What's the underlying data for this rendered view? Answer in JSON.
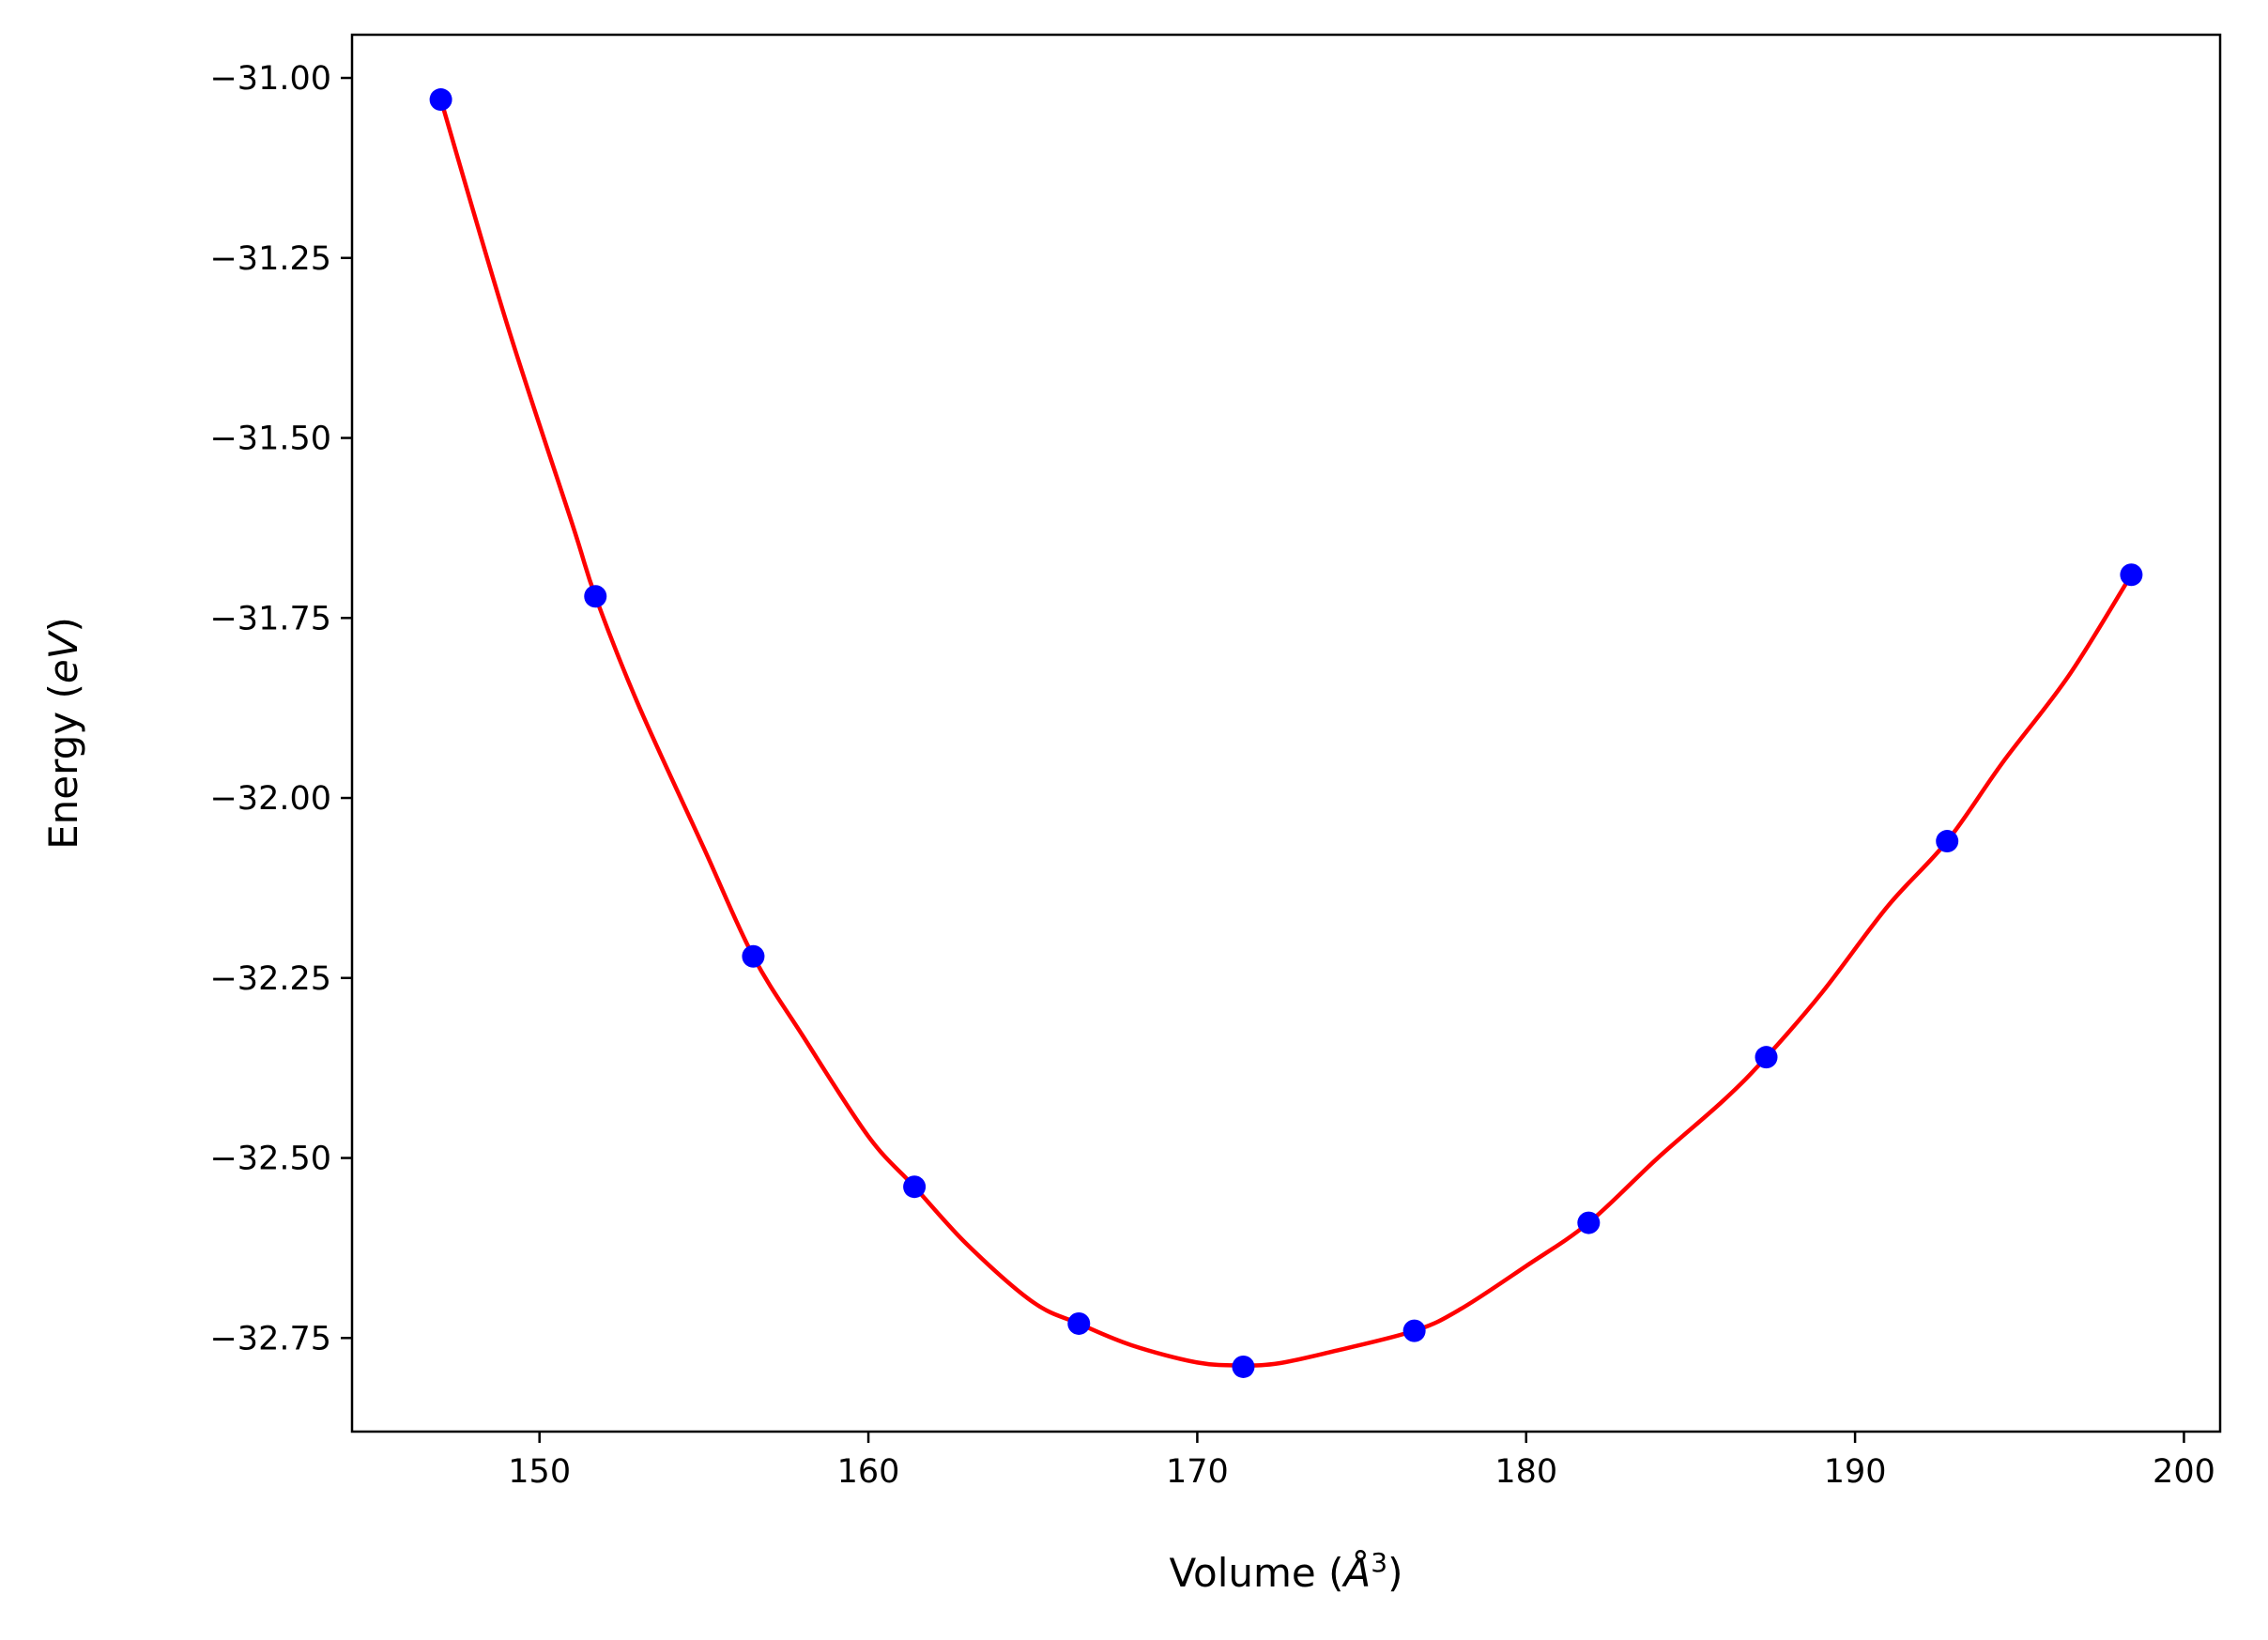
{
  "chart_data": {
    "type": "scatter",
    "title": "",
    "xlabel": "Volume",
    "xlabel_unit_symbol": "Å",
    "xlabel_unit_power": "3",
    "ylabel": "Energy",
    "ylabel_unit": "eV",
    "xlim": [
      144.3,
      201.1
    ],
    "ylim": [
      -32.88,
      -30.94
    ],
    "xticks": [
      150,
      160,
      170,
      180,
      190,
      200
    ],
    "xtick_labels": [
      "150",
      "160",
      "170",
      "180",
      "190",
      "200"
    ],
    "yticks": [
      -31.0,
      -31.25,
      -31.5,
      -31.75,
      -32.0,
      -32.25,
      -32.5,
      -32.75
    ],
    "ytick_labels": [
      "−31.00",
      "−31.25",
      "−31.50",
      "−31.75",
      "−32.00",
      "−32.25",
      "−32.50",
      "−32.75"
    ],
    "grid": false,
    "legend": "none",
    "series": [
      {
        "kind": "points",
        "color": "#0000ff",
        "x": [
          147.0,
          151.7,
          156.5,
          161.4,
          166.4,
          171.4,
          176.6,
          181.9,
          187.3,
          192.8,
          198.4
        ],
        "y": [
          -31.03,
          -31.72,
          -32.22,
          -32.54,
          -32.73,
          -32.79,
          -32.74,
          -32.59,
          -32.36,
          -32.06,
          -31.69
        ]
      },
      {
        "kind": "fit-curve",
        "color": "#ff0000",
        "x": [
          147.0,
          149.0,
          151.0,
          151.7,
          153.0,
          155.0,
          156.5,
          158.0,
          160.0,
          161.4,
          163.0,
          165.0,
          166.4,
          168.0,
          170.0,
          171.4,
          172.5,
          174.0,
          176.6,
          178.0,
          180.0,
          181.9,
          184.0,
          186.0,
          187.3,
          189.0,
          191.0,
          192.8,
          194.5,
          196.5,
          198.4
        ],
        "y": [
          -31.03,
          -31.34,
          -31.62,
          -31.72,
          -31.87,
          -32.07,
          -32.22,
          -32.33,
          -32.47,
          -32.54,
          -32.62,
          -32.7,
          -32.73,
          -32.76,
          -32.784,
          -32.788,
          -32.785,
          -32.77,
          -32.74,
          -32.71,
          -32.65,
          -32.59,
          -32.5,
          -32.42,
          -32.36,
          -32.27,
          -32.15,
          -32.06,
          -31.95,
          -31.83,
          -31.69
        ]
      }
    ]
  }
}
